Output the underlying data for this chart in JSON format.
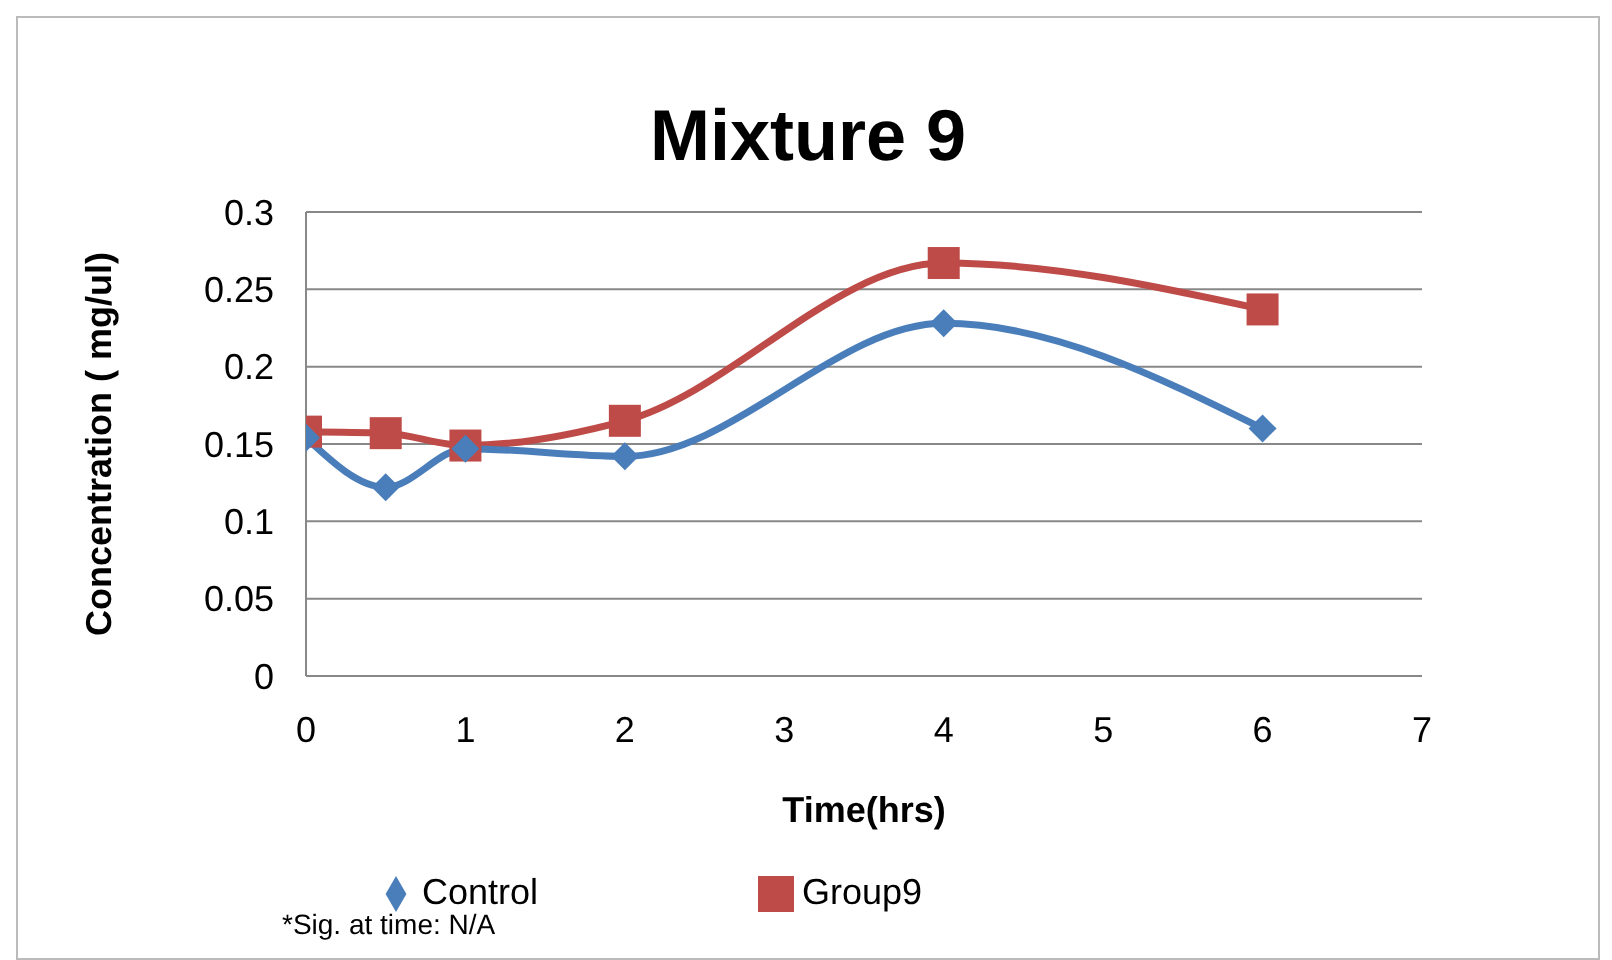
{
  "chart_data": {
    "type": "line",
    "title": "Mixture 9",
    "xlabel": "Time(hrs)",
    "ylabel": "Concentration ( mg/ul)",
    "annotations": [
      "*Sig. at time: N/A"
    ],
    "xlim": [
      0,
      7
    ],
    "xticks": [
      0,
      1,
      2,
      3,
      4,
      5,
      6,
      7
    ],
    "ylim": [
      0,
      0.3
    ],
    "yticks": [
      0,
      0.05,
      0.1,
      0.15,
      0.2,
      0.25,
      0.3
    ],
    "grid": "y",
    "legend": "bottom",
    "series": [
      {
        "name": "Control",
        "color": "#4a7ebb",
        "marker": "diamond",
        "x": [
          0,
          0.5,
          1,
          2,
          4,
          6
        ],
        "values": [
          0.154,
          0.122,
          0.147,
          0.142,
          0.228,
          0.16
        ]
      },
      {
        "name": "Group9",
        "color": "#be4b48",
        "marker": "square",
        "x": [
          0,
          0.5,
          1,
          2,
          4,
          6
        ],
        "values": [
          0.158,
          0.157,
          0.149,
          0.165,
          0.267,
          0.237
        ]
      }
    ]
  }
}
